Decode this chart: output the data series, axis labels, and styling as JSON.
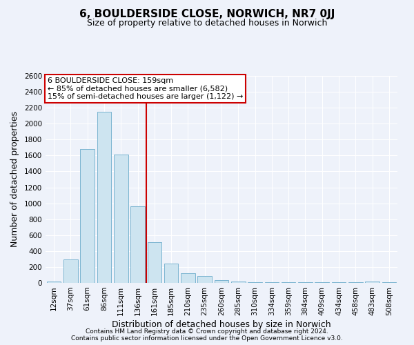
{
  "title": "6, BOULDERSIDE CLOSE, NORWICH, NR7 0JJ",
  "subtitle": "Size of property relative to detached houses in Norwich",
  "xlabel": "Distribution of detached houses by size in Norwich",
  "ylabel": "Number of detached properties",
  "footnote1": "Contains HM Land Registry data © Crown copyright and database right 2024.",
  "footnote2": "Contains public sector information licensed under the Open Government Licence v3.0.",
  "bar_labels": [
    "12sqm",
    "37sqm",
    "61sqm",
    "86sqm",
    "111sqm",
    "136sqm",
    "161sqm",
    "185sqm",
    "210sqm",
    "235sqm",
    "260sqm",
    "285sqm",
    "310sqm",
    "334sqm",
    "359sqm",
    "384sqm",
    "409sqm",
    "434sqm",
    "458sqm",
    "483sqm",
    "508sqm"
  ],
  "bar_heights": [
    18,
    295,
    1680,
    2150,
    1610,
    960,
    510,
    240,
    120,
    90,
    35,
    18,
    12,
    8,
    8,
    5,
    5,
    5,
    5,
    18,
    8
  ],
  "bar_color": "#cde4f0",
  "bar_edge_color": "#7ab4d0",
  "vline_color": "#cc0000",
  "vline_index": 6,
  "annotation_title": "6 BOULDERSIDE CLOSE: 159sqm",
  "annotation_line1": "← 85% of detached houses are smaller (6,582)",
  "annotation_line2": "15% of semi-detached houses are larger (1,122) →",
  "annotation_box_facecolor": "white",
  "annotation_box_edgecolor": "#cc0000",
  "ylim": [
    0,
    2600
  ],
  "yticks": [
    0,
    200,
    400,
    600,
    800,
    1000,
    1200,
    1400,
    1600,
    1800,
    2000,
    2200,
    2400,
    2600
  ],
  "bg_color": "#eef2fa",
  "grid_color": "#ffffff",
  "title_fontsize": 11,
  "subtitle_fontsize": 9,
  "tick_fontsize": 7.5,
  "ylabel_fontsize": 9,
  "xlabel_fontsize": 9,
  "footnote_fontsize": 6.5
}
